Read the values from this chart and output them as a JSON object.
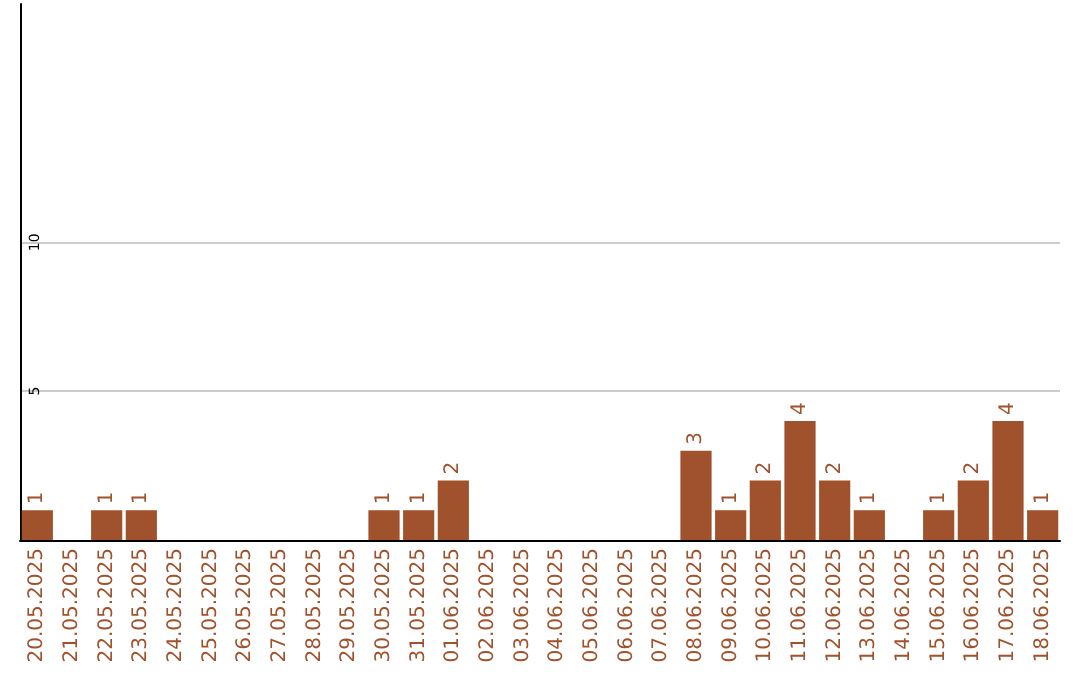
{
  "chart_data": {
    "type": "bar",
    "categories": [
      "20.05.2025",
      "21.05.2025",
      "22.05.2025",
      "23.05.2025",
      "24.05.2025",
      "25.05.2025",
      "26.05.2025",
      "27.05.2025",
      "28.05.2025",
      "29.05.2025",
      "30.05.2025",
      "31.05.2025",
      "01.06.2025",
      "02.06.2025",
      "03.06.2025",
      "04.06.2025",
      "05.06.2025",
      "06.06.2025",
      "07.06.2025",
      "08.06.2025",
      "09.06.2025",
      "10.06.2025",
      "11.06.2025",
      "12.06.2025",
      "13.06.2025",
      "14.06.2025",
      "15.06.2025",
      "16.06.2025",
      "17.06.2025",
      "18.06.2025"
    ],
    "values": [
      1,
      0,
      1,
      1,
      0,
      0,
      0,
      0,
      0,
      0,
      1,
      1,
      2,
      0,
      0,
      0,
      0,
      0,
      0,
      3,
      1,
      2,
      4,
      2,
      1,
      0,
      1,
      2,
      4,
      1
    ],
    "value_labels": [
      "1",
      null,
      "1",
      "1",
      null,
      null,
      null,
      null,
      null,
      null,
      "1",
      "1",
      "2",
      null,
      null,
      null,
      null,
      null,
      null,
      "3",
      "1",
      "2",
      "4",
      "2",
      "1",
      null,
      "1",
      "2",
      "4",
      "1"
    ],
    "color": "#a0522d",
    "ylim": [
      0,
      18
    ],
    "yticks": [
      5,
      10
    ],
    "grid": "y"
  }
}
